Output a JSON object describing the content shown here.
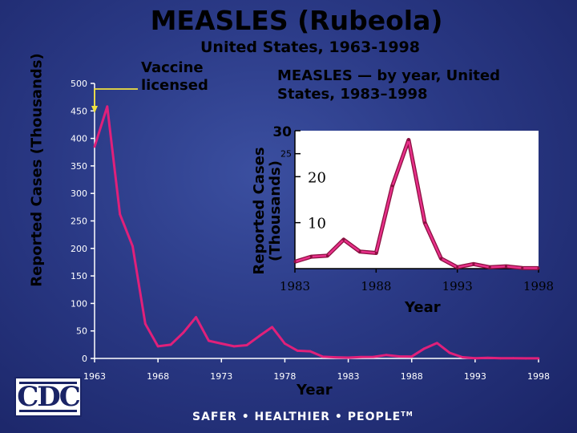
{
  "header": {
    "title": "MEASLES (Rubeola)",
    "subtitle": "United States, 1963-1998"
  },
  "annotation": {
    "vaccine_line1": "Vaccine",
    "vaccine_line2": "licensed",
    "arrow_year": 1963
  },
  "inset": {
    "title_line1": "MEASLES — by year, United",
    "title_line2": "States, 1983–1998",
    "ylabel_line1": "Reported Cases",
    "ylabel_line2": "(Thousands)",
    "xlabel": "Year"
  },
  "footer": {
    "logo_text": "CDC",
    "tagline": "SAFER • HEALTHIER • PEOPLE",
    "tagline_tm": "TM"
  },
  "colors": {
    "main_line": "#e0207a",
    "inset_line_fill": "#e8308a",
    "inset_line_stroke": "#8a1040",
    "inset_bg": "#ffffff",
    "axis": "#ffffff",
    "tick_text": "#ffffff",
    "inset_axis": "#000000",
    "arrow": "#f0e040"
  },
  "chart_data": [
    {
      "type": "line",
      "title": "",
      "xlabel": "Year",
      "ylabel": "Reported Cases (Thousands)",
      "xlim": [
        1963,
        1998
      ],
      "ylim": [
        0,
        500
      ],
      "x_ticks": [
        "1963",
        "1968",
        "1973",
        "1978",
        "1983",
        "1988",
        "1993",
        "1998"
      ],
      "y_ticks": [
        "0",
        "50",
        "100",
        "150",
        "200",
        "250",
        "300",
        "350",
        "400",
        "450",
        "500"
      ],
      "grid": false,
      "series": [
        {
          "x": [
            1963,
            1964,
            1965,
            1966,
            1967,
            1968,
            1969,
            1970,
            1971,
            1972,
            1973,
            1974,
            1975,
            1976,
            1977,
            1978,
            1979,
            1980,
            1981,
            1982,
            1983,
            1984,
            1985,
            1986,
            1987,
            1988,
            1989,
            1990,
            1991,
            1992,
            1993,
            1994,
            1995,
            1996,
            1997,
            1998
          ],
          "y": [
            385,
            458,
            262,
            204,
            63,
            22,
            25,
            47,
            75,
            32,
            27,
            22,
            24,
            41,
            57,
            27,
            14,
            13,
            3,
            2,
            1.5,
            2.6,
            2.8,
            6.3,
            3.7,
            3.4,
            18,
            28,
            10,
            2.2,
            0.3,
            1,
            0.3,
            0.5,
            0.14,
            0.1
          ]
        }
      ]
    },
    {
      "type": "line",
      "title": "MEASLES — by year, United States, 1983–1998",
      "xlabel": "Year",
      "ylabel": "Reported Cases (Thousands)",
      "xlim": [
        1983,
        1998
      ],
      "ylim": [
        0,
        30
      ],
      "x_ticks": [
        "1983",
        "1988",
        "1993",
        "1998"
      ],
      "y_ticks": [
        "10",
        "20",
        "25",
        "30"
      ],
      "grid": false,
      "series": [
        {
          "x": [
            1983,
            1984,
            1985,
            1986,
            1987,
            1988,
            1989,
            1990,
            1991,
            1992,
            1993,
            1994,
            1995,
            1996,
            1997,
            1998
          ],
          "y": [
            1.5,
            2.6,
            2.8,
            6.3,
            3.7,
            3.4,
            18,
            28,
            10,
            2.2,
            0.3,
            1,
            0.3,
            0.5,
            0.14,
            0.1
          ]
        }
      ]
    }
  ]
}
